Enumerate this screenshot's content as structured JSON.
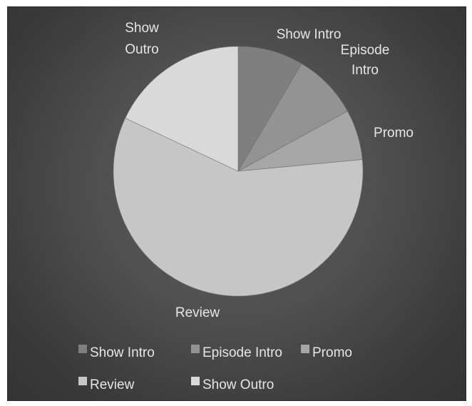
{
  "chart_data": {
    "type": "pie",
    "title": "",
    "categories": [
      "Show Intro",
      "Episode Intro",
      "Promo",
      "Review",
      "Show Outro"
    ],
    "values": [
      8.5,
      8.5,
      6.5,
      58.5,
      18
    ],
    "colors": [
      "#7f7f7f",
      "#939393",
      "#a6a6a6",
      "#c6c6c6",
      "#d9d9d9"
    ],
    "slice_labels": [
      [
        "Show Intro"
      ],
      [
        "Episode",
        "Intro"
      ],
      [
        "Promo"
      ],
      [
        "Review"
      ],
      [
        "Show",
        "Outro"
      ]
    ],
    "legend": {
      "placement": "bottom",
      "entries": [
        "Show Intro",
        "Episode Intro",
        "Promo",
        "Review",
        "Show Outro"
      ]
    }
  }
}
